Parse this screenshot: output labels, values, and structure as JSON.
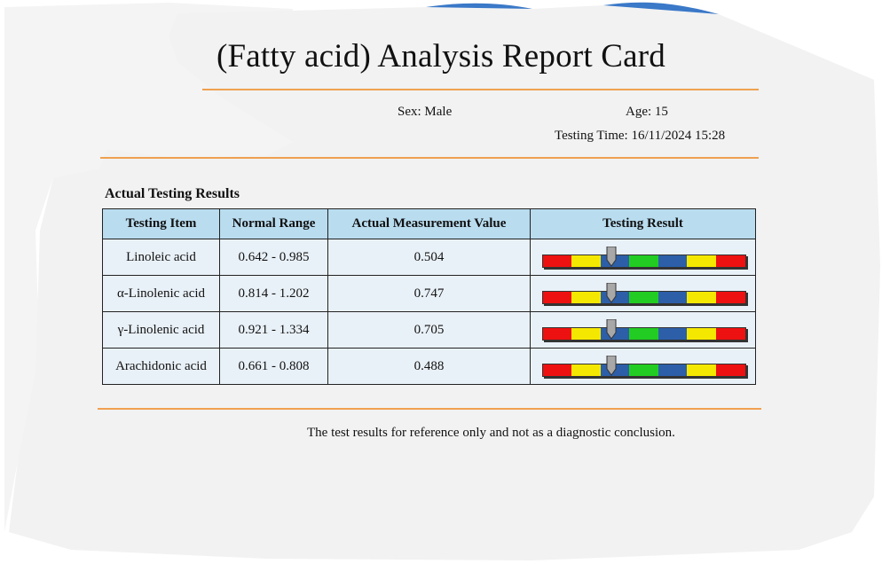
{
  "report": {
    "title": "(Fatty acid) Analysis Report Card",
    "sex": "Sex: Male",
    "age": "Age: 15",
    "testing_time": "Testing Time: 16/11/2024 15:28"
  },
  "results": {
    "section_title": "Actual Testing Results",
    "headers": [
      "Testing Item",
      "Normal Range",
      "Actual Measurement Value",
      "Testing Result"
    ],
    "rows": [
      {
        "item": "Linoleic acid",
        "range": "0.642 - 0.985",
        "value": "0.504",
        "level": 0.345
      },
      {
        "item": "α-Linolenic acid",
        "range": "0.814 - 1.202",
        "value": "0.747",
        "level": 0.345
      },
      {
        "item": "γ-Linolenic acid",
        "range": "0.921 - 1.334",
        "value": "0.705",
        "level": 0.345
      },
      {
        "item": "Arachidonic acid",
        "range": "0.661 - 0.808",
        "value": "0.488",
        "level": 0.345
      }
    ],
    "scale_colors": [
      "#ee1111",
      "#f5e800",
      "#2c5fa8",
      "#22cc22",
      "#2c5fa8",
      "#f5e800",
      "#ee1111"
    ]
  },
  "footer": {
    "note": "The test results for reference only and not as a diagnostic conclusion."
  }
}
